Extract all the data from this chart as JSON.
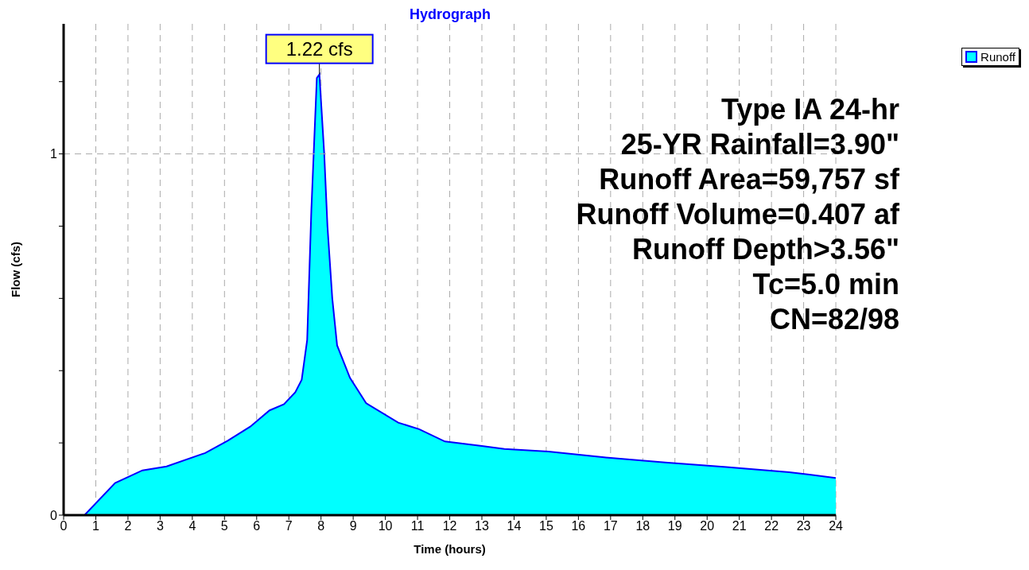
{
  "chart_data": {
    "type": "area",
    "title": "Hydrograph",
    "xlabel": "Time  (hours)",
    "ylabel": "Flow  (cfs)",
    "x": [
      0,
      0.65,
      1.6,
      2.45,
      3.2,
      4.4,
      5.1,
      5.8,
      6.4,
      6.85,
      7.2,
      7.4,
      7.57,
      7.7,
      7.8,
      7.87,
      7.95,
      8.1,
      8.2,
      8.35,
      8.5,
      8.9,
      9.4,
      10.4,
      11.05,
      11.85,
      12.95,
      13.7,
      15.07,
      16.8,
      18.7,
      20.6,
      22.55,
      24
    ],
    "series": [
      {
        "name": "Runoff",
        "color": "#00ffff",
        "values": [
          0,
          0,
          0.089,
          0.124,
          0.135,
          0.172,
          0.206,
          0.245,
          0.29,
          0.307,
          0.34,
          0.375,
          0.485,
          0.845,
          1.06,
          1.21,
          1.22,
          1.0,
          0.8,
          0.6,
          0.47,
          0.38,
          0.31,
          0.256,
          0.238,
          0.204,
          0.192,
          0.183,
          0.176,
          0.16,
          0.146,
          0.133,
          0.119,
          0.103
        ]
      }
    ],
    "xlim": [
      0,
      24
    ],
    "xticks": [
      0,
      1,
      2,
      3,
      4,
      5,
      6,
      7,
      8,
      9,
      10,
      11,
      12,
      13,
      14,
      15,
      16,
      17,
      18,
      19,
      20,
      21,
      22,
      23,
      24
    ],
    "ylim": [
      0,
      1.36
    ],
    "yticks": [
      0,
      {
        "value": 0.2,
        "label": null
      },
      {
        "value": 0.4,
        "label": null
      },
      {
        "value": 0.6,
        "label": null
      },
      {
        "value": 0.8,
        "label": null
      },
      1,
      {
        "value": 1.2,
        "label": null
      }
    ],
    "grid": true,
    "legend": "top right",
    "annotations": [
      {
        "text": "1.22 cfs",
        "x": 7.95,
        "y": 1.22
      },
      "Type IA 24-hr",
      "25-YR Rainfall=3.90\"",
      "Runoff Area=59,757 sf",
      "Runoff Volume=0.407 af",
      "Runoff Depth>3.56\"",
      "Tc=5.0 min",
      "CN=82/98"
    ]
  }
}
